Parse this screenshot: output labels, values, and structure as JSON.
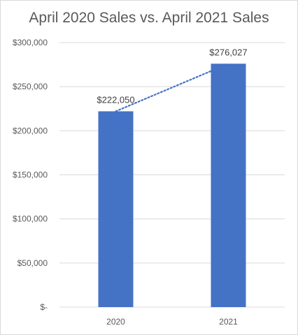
{
  "chart_data": {
    "type": "bar",
    "title": "April 2020 Sales vs. April 2021 Sales",
    "categories": [
      "2020",
      "2021"
    ],
    "values": [
      222050,
      276027
    ],
    "data_labels": [
      "$222,050",
      "$276,027"
    ],
    "ylim": [
      0,
      300000
    ],
    "y_ticks": [
      0,
      50000,
      100000,
      150000,
      200000,
      250000,
      300000
    ],
    "y_tick_labels": [
      "$-",
      "$50,000",
      "$100,000",
      "$150,000",
      "$200,000",
      "$250,000",
      "$300,000"
    ],
    "xlabel": "",
    "ylabel": "",
    "grid": true,
    "legend": "none",
    "trendline": "linear-dotted",
    "colors": {
      "bar": "#4472c4",
      "trendline": "#4472c4",
      "grid": "#d9d9d9",
      "text": "#595959"
    }
  }
}
